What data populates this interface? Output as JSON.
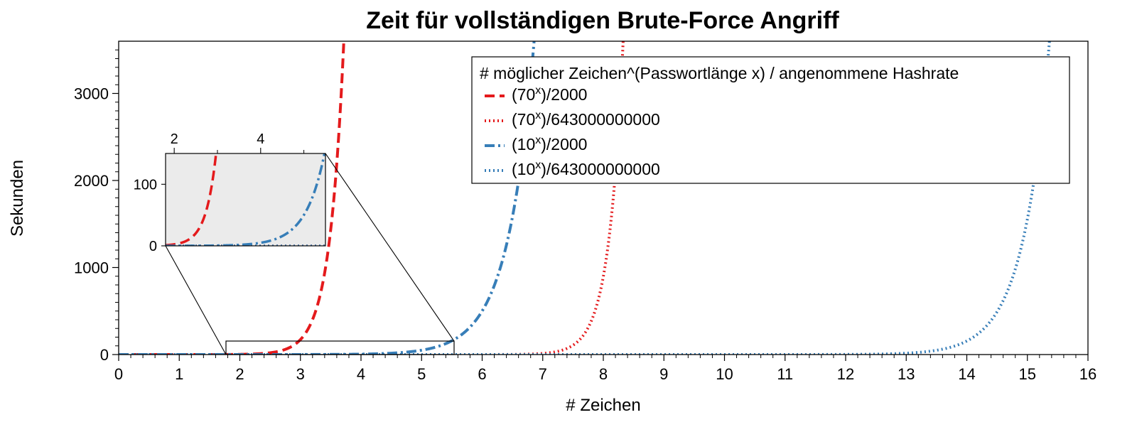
{
  "chart_data": {
    "type": "line",
    "title": "Zeit für vollständigen Brute-Force Angriff",
    "xlabel": "# Zeichen",
    "ylabel": "Sekunden",
    "xlim": [
      0,
      16
    ],
    "ylim": [
      0,
      3600
    ],
    "x_ticks": [
      0,
      1,
      2,
      3,
      4,
      5,
      6,
      7,
      8,
      9,
      10,
      11,
      12,
      13,
      14,
      15,
      16
    ],
    "y_ticks": [
      0,
      1000,
      2000,
      3000
    ],
    "grid": false,
    "legend": {
      "title": "# möglicher Zeichen^(Passwortlänge x) / angenommene Hashrate",
      "placement": "top-right",
      "entries": [
        {
          "base": "(70",
          "sup": "x",
          "tail": ")/2000",
          "color": "#e41a1c",
          "style": "dashed"
        },
        {
          "base": "(70",
          "sup": "x",
          "tail": ")/643000000000",
          "color": "#e41a1c",
          "style": "dotted"
        },
        {
          "base": "(10",
          "sup": "x",
          "tail": ")/2000",
          "color": "#377eb8",
          "style": "dashdot"
        },
        {
          "base": "(10",
          "sup": "x",
          "tail": ")/643000000000",
          "color": "#377eb8",
          "style": "dotted"
        }
      ]
    },
    "series": [
      {
        "name": "(70^x)/2000",
        "base": 70,
        "divisor": 2000,
        "color": "#e41a1c",
        "style": "dashed"
      },
      {
        "name": "(70^x)/643000000000",
        "base": 70,
        "divisor": 643000000000,
        "color": "#e41a1c",
        "style": "dotted"
      },
      {
        "name": "(10^x)/2000",
        "base": 10,
        "divisor": 2000,
        "color": "#377eb8",
        "style": "dashdot"
      },
      {
        "name": "(10^x)/643000000000",
        "base": 10,
        "divisor": 643000000000,
        "color": "#377eb8",
        "style": "dotted"
      }
    ],
    "inset": {
      "xlim": [
        1.8,
        5.5
      ],
      "ylim": [
        0,
        150
      ],
      "x_ticks": [
        2,
        4
      ],
      "x_minor_ticks": [
        3,
        5
      ],
      "y_ticks": [
        0,
        100
      ],
      "background": "#ebebeb"
    }
  }
}
